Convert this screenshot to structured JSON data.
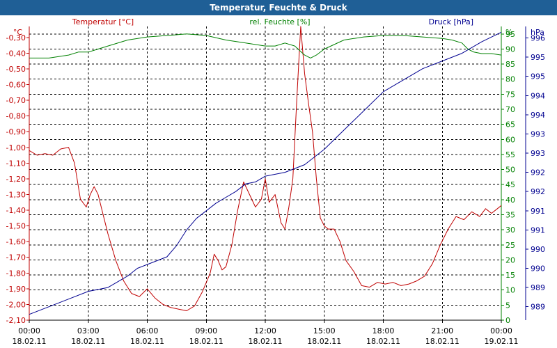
{
  "window": {
    "title": "Temperatur, Feuchte & Druck"
  },
  "chart_data": {
    "type": "line",
    "title": "Temperatur, Feuchte & Druck",
    "x_ticks": [
      {
        "time": "00:00",
        "date": "18.02.11"
      },
      {
        "time": "03:00",
        "date": "18.02.11"
      },
      {
        "time": "06:00",
        "date": "18.02.11"
      },
      {
        "time": "09:00",
        "date": "18.02.11"
      },
      {
        "time": "12:00",
        "date": "18.02.11"
      },
      {
        "time": "15:00",
        "date": "18.02.11"
      },
      {
        "time": "18:00",
        "date": "18.02.11"
      },
      {
        "time": "21:00",
        "date": "18.02.11"
      },
      {
        "time": "00:00",
        "date": "19.02.11"
      }
    ],
    "x_range_hours": [
      0,
      24
    ],
    "axes": {
      "temperature": {
        "label": "Temperatur [°C]",
        "unit": "°C",
        "color": "#c00000",
        "range": [
          -2.1,
          -0.23
        ],
        "ticks": [
          "-0,30",
          "-0,40",
          "-0,50",
          "-0,60",
          "-0,70",
          "-0,80",
          "-0,90",
          "-1,00",
          "-1,10",
          "-1,20",
          "-1,30",
          "-1,40",
          "-1,50",
          "-1,60",
          "-1,70",
          "-1,80",
          "-1,90",
          "-2,00",
          "-2,10"
        ],
        "tick_values": [
          -0.3,
          -0.4,
          -0.5,
          -0.6,
          -0.7,
          -0.8,
          -0.9,
          -1.0,
          -1.1,
          -1.2,
          -1.3,
          -1.4,
          -1.5,
          -1.6,
          -1.7,
          -1.8,
          -1.9,
          -2.0,
          -2.1
        ]
      },
      "humidity": {
        "label": "rel. Feuchte [%]",
        "unit": "%",
        "color": "#008000",
        "range": [
          0,
          97.5
        ],
        "ticks": [
          "95",
          "90",
          "85",
          "80",
          "75",
          "70",
          "65",
          "60",
          "55",
          "50",
          "45",
          "40",
          "35",
          "30",
          "25",
          "20",
          "15",
          "10",
          "5",
          "0"
        ],
        "tick_values": [
          95,
          90,
          85,
          80,
          75,
          70,
          65,
          60,
          55,
          50,
          45,
          40,
          35,
          30,
          25,
          20,
          15,
          10,
          5,
          0
        ]
      },
      "pressure": {
        "label": "Druck [hPa]",
        "unit": "hPa",
        "color": "#000090",
        "range": [
          988.65,
          996.3
        ],
        "ticks": [
          "996",
          "995",
          "995",
          "994",
          "994",
          "993",
          "993",
          "992",
          "992",
          "991",
          "991",
          "990",
          "990",
          "989",
          "989"
        ],
        "tick_values": [
          996.0,
          995.5,
          995.0,
          994.5,
          994.0,
          993.5,
          993.0,
          992.5,
          992.0,
          991.5,
          991.0,
          990.5,
          990.0,
          989.5,
          989.0
        ]
      }
    },
    "series": [
      {
        "name": "Temperatur",
        "axis": "temperature",
        "color": "#c00000",
        "x": [
          0,
          0.4,
          0.8,
          1.2,
          1.6,
          2.0,
          2.3,
          2.6,
          2.9,
          3.1,
          3.3,
          3.5,
          3.7,
          4.0,
          4.4,
          4.8,
          5.2,
          5.6,
          6.0,
          6.4,
          6.8,
          7.2,
          7.6,
          8.0,
          8.4,
          8.8,
          9.2,
          9.4,
          9.6,
          9.8,
          10.0,
          10.3,
          10.6,
          10.9,
          11.2,
          11.5,
          11.8,
          12.0,
          12.2,
          12.5,
          12.8,
          13.0,
          13.2,
          13.4,
          13.6,
          13.8,
          14.0,
          14.2,
          14.4,
          14.6,
          14.8,
          15.0,
          15.2,
          15.5,
          15.8,
          16.1,
          16.5,
          16.9,
          17.3,
          17.7,
          18.1,
          18.5,
          18.9,
          19.3,
          19.7,
          20.1,
          20.5,
          20.9,
          21.3,
          21.7,
          22.1,
          22.5,
          22.9,
          23.2,
          23.5,
          23.8,
          24.0
        ],
        "values": [
          -1.02,
          -1.05,
          -1.04,
          -1.05,
          -1.01,
          -1.0,
          -1.1,
          -1.33,
          -1.38,
          -1.3,
          -1.25,
          -1.3,
          -1.4,
          -1.55,
          -1.72,
          -1.85,
          -1.93,
          -1.95,
          -1.9,
          -1.96,
          -2.0,
          -2.02,
          -2.03,
          -2.04,
          -2.01,
          -1.92,
          -1.8,
          -1.68,
          -1.72,
          -1.78,
          -1.76,
          -1.62,
          -1.4,
          -1.22,
          -1.3,
          -1.38,
          -1.33,
          -1.2,
          -1.35,
          -1.3,
          -1.48,
          -1.52,
          -1.38,
          -1.2,
          -0.7,
          -0.23,
          -0.53,
          -0.72,
          -0.9,
          -1.2,
          -1.45,
          -1.5,
          -1.52,
          -1.52,
          -1.6,
          -1.72,
          -1.79,
          -1.88,
          -1.89,
          -1.86,
          -1.87,
          -1.86,
          -1.88,
          -1.87,
          -1.85,
          -1.82,
          -1.74,
          -1.62,
          -1.52,
          -1.44,
          -1.46,
          -1.41,
          -1.44,
          -1.39,
          -1.42,
          -1.39,
          -1.37
        ]
      },
      {
        "name": "rel. Feuchte",
        "axis": "humidity",
        "color": "#008000",
        "x": [
          0,
          1,
          2,
          2.5,
          3,
          3.5,
          4,
          5,
          6,
          7,
          8,
          9,
          10,
          11,
          12,
          12.5,
          13,
          13.5,
          14,
          14.3,
          14.6,
          15,
          16,
          17,
          18,
          19,
          20,
          21,
          21.5,
          22,
          22.3,
          22.6,
          23,
          23.5,
          24
        ],
        "values": [
          87,
          87,
          88,
          89,
          89,
          90,
          91,
          93,
          94,
          94.5,
          95,
          94.5,
          93,
          92,
          91,
          91,
          92,
          91,
          88,
          87,
          88,
          90,
          93,
          94,
          94.5,
          94.5,
          94,
          93.5,
          93,
          92,
          90,
          89,
          88.5,
          88.5,
          88
        ]
      },
      {
        "name": "Druck",
        "axis": "pressure",
        "color": "#000090",
        "x": [
          0,
          1,
          2,
          3,
          4,
          5,
          5.5,
          6,
          7,
          7.5,
          8,
          8.5,
          9,
          9.5,
          10,
          10.5,
          11,
          11.5,
          12,
          13,
          14,
          15,
          16,
          17,
          18,
          19,
          20,
          21,
          22,
          23,
          24
        ],
        "values": [
          988.8,
          989.0,
          989.2,
          989.4,
          989.5,
          989.8,
          990.0,
          990.1,
          990.3,
          990.6,
          991.0,
          991.3,
          991.5,
          991.7,
          991.85,
          992.0,
          992.2,
          992.25,
          992.4,
          992.5,
          992.7,
          993.1,
          993.6,
          994.1,
          994.6,
          994.9,
          995.2,
          995.4,
          995.6,
          995.9,
          996.15
        ]
      }
    ],
    "grid": true
  }
}
